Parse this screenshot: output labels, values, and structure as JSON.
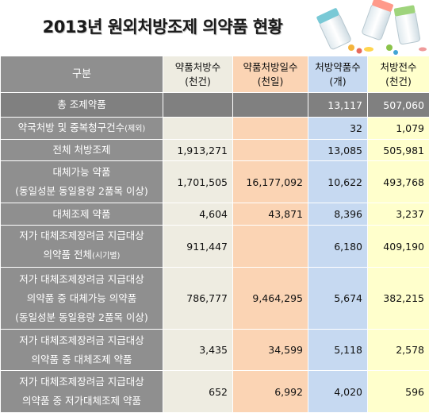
{
  "title": "2013년 원외처방조제 의약품 현황",
  "headers": {
    "category": "구분",
    "col1": [
      "약품처방수",
      "(천건)"
    ],
    "col2": [
      "약품처방일수",
      "(천일)"
    ],
    "col3": [
      "처방약품수",
      "(개)"
    ],
    "col4": [
      "처방전수",
      "(천건)"
    ]
  },
  "rows": [
    {
      "label": [
        "총 조제약품"
      ],
      "v1": "",
      "v2": "",
      "v3": "13,117",
      "v4": "507,060"
    },
    {
      "label": [
        "약국처방 및 중복청구건수",
        "(제외)"
      ],
      "v1": "",
      "v2": "",
      "v3": "32",
      "v4": "1,079"
    },
    {
      "label": [
        "전체 처방조제"
      ],
      "v1": "1,913,271",
      "v2": "",
      "v3": "13,085",
      "v4": "505,981"
    },
    {
      "label": [
        "대체가능 약품",
        "(동일성분 동일용량 2품목 이상)"
      ],
      "v1": "1,701,505",
      "v2": "16,177,092",
      "v3": "10,622",
      "v4": "493,768"
    },
    {
      "label": [
        "대체조제 약품"
      ],
      "v1": "4,604",
      "v2": "43,871",
      "v3": "8,396",
      "v4": "3,237"
    },
    {
      "label": [
        "저가 대체조제장려금 지급대상",
        "의약품 전체",
        "(시기별)"
      ],
      "v1": "911,447",
      "v2": "",
      "v3": "6,180",
      "v4": "409,190"
    },
    {
      "label": [
        "저가 대체조제장려금 지급대상",
        "의약품 중 대체가능 의약품",
        "(동일성분 동일용량 2품목 이상)"
      ],
      "v1": "786,777",
      "v2": "9,464,295",
      "v3": "5,674",
      "v4": "382,215"
    },
    {
      "label": [
        "저가 대체조제장려금 지급대상",
        "의약품 중 대체조제 약품"
      ],
      "v1": "3,435",
      "v2": "34,599",
      "v3": "5,118",
      "v4": "2,578"
    },
    {
      "label": [
        "저가 대체조제장려금 지급대상",
        "의약품 중 저가대체조제 약품"
      ],
      "v1": "652",
      "v2": "6,992",
      "v3": "4,020",
      "v4": "596"
    }
  ],
  "colors": {
    "label_bg": "#8f8f8f",
    "col1_bg": "#eeece1",
    "col2_bg": "#fbd4b4",
    "col3_bg": "#c6d9f1",
    "col4_bg": "#ffffcc"
  }
}
